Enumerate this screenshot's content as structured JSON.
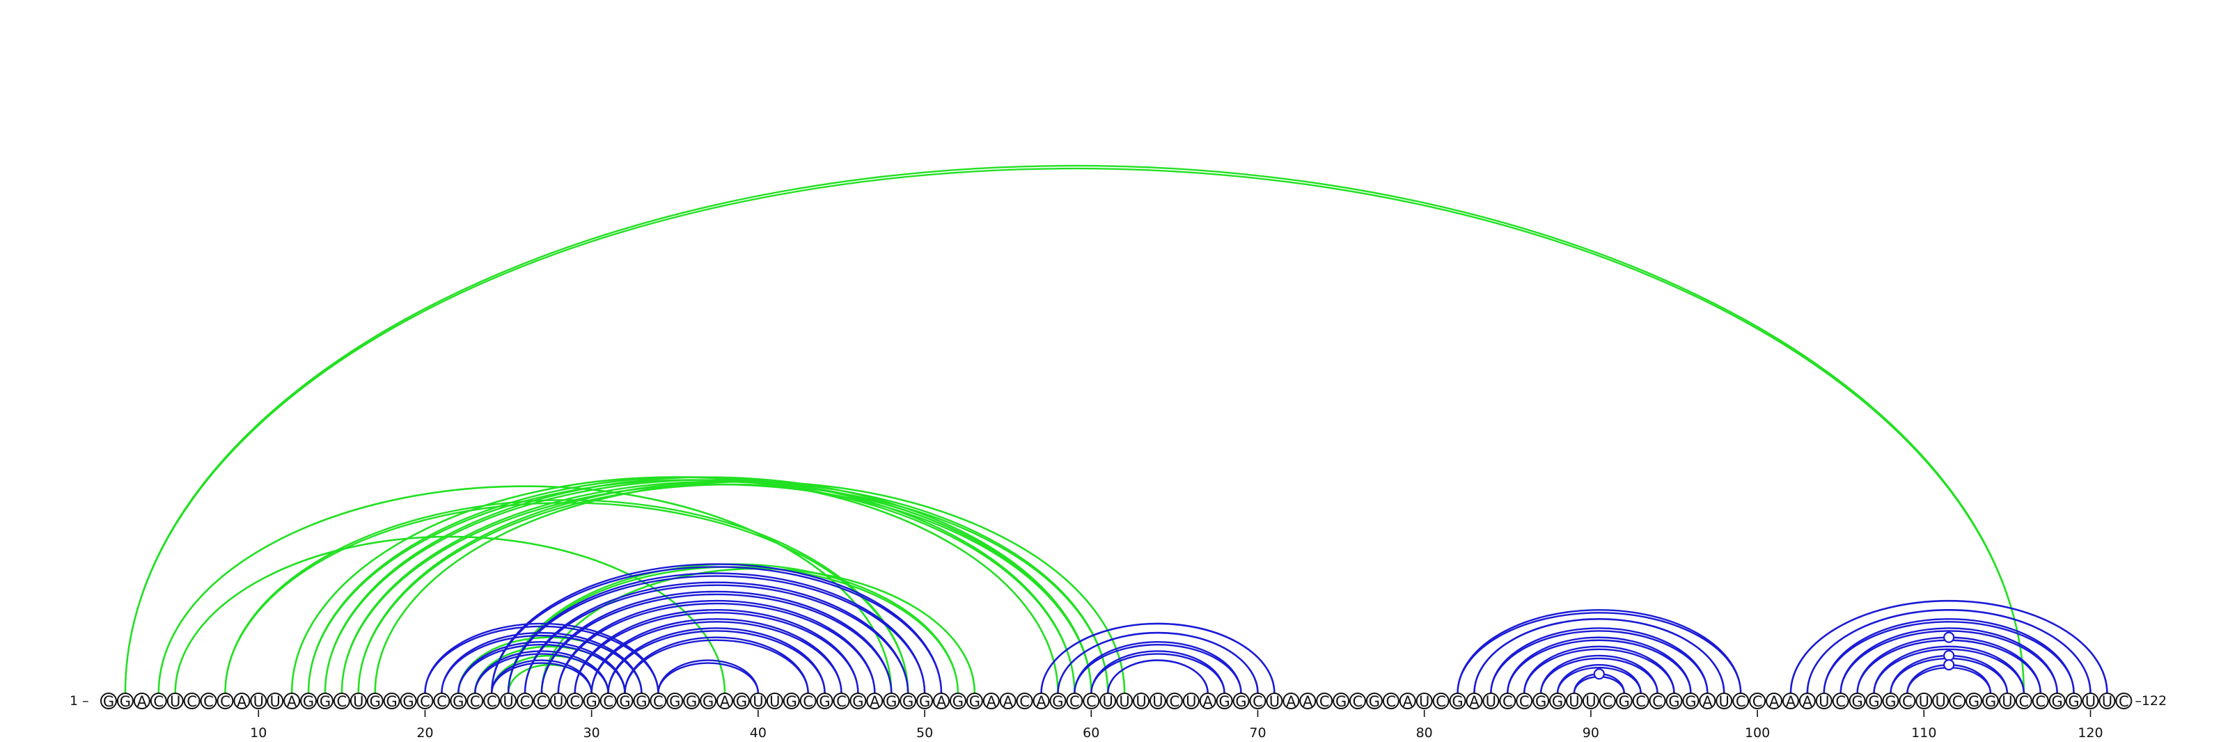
{
  "sequence": "GGACUCCCAUUAGGCUGGGCCGCCUCCUCGCGGCGGGAGUUGCGCGAGGGAGGAACAGCCUUUUCUAGGCUAACGCGCAUCGAUCCGGUUCGCCGGAUCCAAAUCGGGCUUCGGUCCGGUUC",
  "start_label": "1 –",
  "end_label": "–122",
  "ticks": [
    {
      "position": 10,
      "label": "10"
    },
    {
      "position": 20,
      "label": "20"
    },
    {
      "position": 30,
      "label": "30"
    },
    {
      "position": 40,
      "label": "40"
    },
    {
      "position": 50,
      "label": "50"
    },
    {
      "position": 60,
      "label": "60"
    },
    {
      "position": 70,
      "label": "70"
    },
    {
      "position": 80,
      "label": "80"
    },
    {
      "position": 90,
      "label": "90"
    },
    {
      "position": 100,
      "label": "100"
    },
    {
      "position": 110,
      "label": "110"
    },
    {
      "position": 120,
      "label": "120"
    }
  ],
  "colors": {
    "green": "#22e022",
    "blue": "#1a1ad6",
    "circle_stroke": "#111111",
    "background": "#ffffff"
  },
  "pairs": [
    {
      "i": 2,
      "j": 116,
      "color": "green",
      "double": true
    },
    {
      "i": 4,
      "j": 48,
      "color": "green",
      "double": false
    },
    {
      "i": 5,
      "j": 38,
      "color": "green",
      "double": false
    },
    {
      "i": 8,
      "j": 49,
      "color": "green",
      "double": true
    },
    {
      "i": 12,
      "j": 58,
      "color": "green",
      "double": false
    },
    {
      "i": 13,
      "j": 59,
      "color": "green",
      "double": true
    },
    {
      "i": 14,
      "j": 60,
      "color": "green",
      "double": true
    },
    {
      "i": 15,
      "j": 60,
      "color": "green",
      "double": true
    },
    {
      "i": 16,
      "j": 61,
      "color": "green",
      "double": true
    },
    {
      "i": 17,
      "j": 62,
      "color": "green",
      "double": false
    },
    {
      "i": 22,
      "j": 33,
      "color": "green",
      "double": false
    },
    {
      "i": 23,
      "j": 32,
      "color": "green",
      "double": false
    },
    {
      "i": 24,
      "j": 31,
      "color": "green",
      "double": false
    },
    {
      "i": 25,
      "j": 30,
      "color": "green",
      "double": false
    },
    {
      "i": 25,
      "j": 52,
      "color": "green",
      "double": true
    },
    {
      "i": 27,
      "j": 53,
      "color": "green",
      "double": false
    },
    {
      "i": 20,
      "j": 34,
      "color": "blue",
      "double": true
    },
    {
      "i": 21,
      "j": 33,
      "color": "blue",
      "double": true
    },
    {
      "i": 22,
      "j": 32,
      "color": "blue",
      "double": true
    },
    {
      "i": 23,
      "j": 31,
      "color": "blue",
      "double": true
    },
    {
      "i": 24,
      "j": 30,
      "color": "blue",
      "double": true
    },
    {
      "i": 24,
      "j": 51,
      "color": "blue",
      "double": true
    },
    {
      "i": 25,
      "j": 50,
      "color": "blue",
      "double": true
    },
    {
      "i": 26,
      "j": 49,
      "color": "blue",
      "double": true
    },
    {
      "i": 27,
      "j": 48,
      "color": "blue",
      "double": true
    },
    {
      "i": 28,
      "j": 47,
      "color": "blue",
      "double": true
    },
    {
      "i": 29,
      "j": 46,
      "color": "blue",
      "double": true
    },
    {
      "i": 30,
      "j": 45,
      "color": "blue",
      "double": true
    },
    {
      "i": 31,
      "j": 44,
      "color": "blue",
      "double": true
    },
    {
      "i": 32,
      "j": 43,
      "color": "blue",
      "double": true
    },
    {
      "i": 34,
      "j": 40,
      "color": "blue",
      "double": true
    },
    {
      "i": 57,
      "j": 71,
      "color": "blue",
      "double": false
    },
    {
      "i": 58,
      "j": 70,
      "color": "blue",
      "double": false
    },
    {
      "i": 59,
      "j": 69,
      "color": "blue",
      "double": true
    },
    {
      "i": 60,
      "j": 68,
      "color": "blue",
      "double": true
    },
    {
      "i": 61,
      "j": 67,
      "color": "blue",
      "double": false
    },
    {
      "i": 82,
      "j": 99,
      "color": "blue",
      "double": true
    },
    {
      "i": 83,
      "j": 98,
      "color": "blue",
      "double": false
    },
    {
      "i": 84,
      "j": 97,
      "color": "blue",
      "double": true
    },
    {
      "i": 85,
      "j": 96,
      "color": "blue",
      "double": true
    },
    {
      "i": 86,
      "j": 95,
      "color": "blue",
      "double": true
    },
    {
      "i": 87,
      "j": 94,
      "color": "blue",
      "double": true
    },
    {
      "i": 88,
      "j": 93,
      "color": "blue",
      "double": true
    },
    {
      "i": 89,
      "j": 92,
      "color": "blue",
      "double": true
    },
    {
      "i": 102,
      "j": 121,
      "color": "blue",
      "double": false
    },
    {
      "i": 103,
      "j": 120,
      "color": "blue",
      "double": false
    },
    {
      "i": 104,
      "j": 119,
      "color": "blue",
      "double": true
    },
    {
      "i": 105,
      "j": 118,
      "color": "blue",
      "double": true
    },
    {
      "i": 106,
      "j": 117,
      "color": "blue",
      "double": true
    },
    {
      "i": 107,
      "j": 116,
      "color": "blue",
      "double": true
    },
    {
      "i": 108,
      "j": 115,
      "color": "blue",
      "double": true
    },
    {
      "i": 109,
      "j": 114,
      "color": "blue",
      "double": true
    }
  ],
  "pair_marks": [
    {
      "i": 89,
      "j": 92
    },
    {
      "i": 106,
      "j": 117
    },
    {
      "i": 108,
      "j": 115
    },
    {
      "i": 109,
      "j": 114
    }
  ]
}
